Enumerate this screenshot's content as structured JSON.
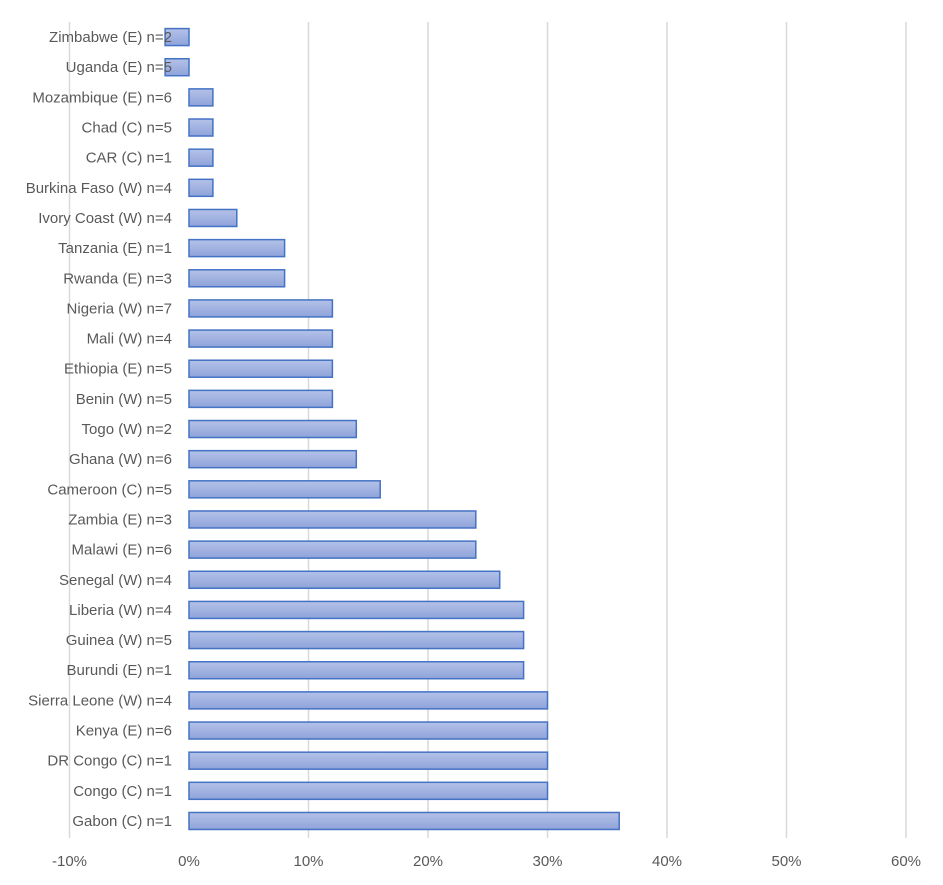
{
  "chart_data": {
    "type": "bar",
    "orientation": "horizontal",
    "title": "",
    "xlabel": "",
    "ylabel": "",
    "xlim": [
      -0.1,
      0.6
    ],
    "x_ticks": [
      {
        "value": -0.1,
        "label": "-10%"
      },
      {
        "value": 0.0,
        "label": "0%"
      },
      {
        "value": 0.1,
        "label": "10%"
      },
      {
        "value": 0.2,
        "label": "20%"
      },
      {
        "value": 0.3,
        "label": "30%"
      },
      {
        "value": 0.4,
        "label": "40%"
      },
      {
        "value": 0.5,
        "label": "50%"
      },
      {
        "value": 0.6,
        "label": "60%"
      }
    ],
    "grid": true,
    "legend": "none",
    "categories": [
      "Zimbabwe (E) n=2",
      "Uganda (E) n=5",
      "Mozambique (E) n=6",
      "Chad (C) n=5",
      "CAR (C) n=1",
      "Burkina Faso (W) n=4",
      "Ivory Coast (W) n=4",
      "Tanzania (E) n=1",
      "Rwanda (E) n=3",
      "Nigeria (W) n=7",
      "Mali (W) n=4",
      "Ethiopia (E) n=5",
      "Benin (W) n=5",
      "Togo (W) n=2",
      "Ghana (W) n=6",
      "Cameroon (C) n=5",
      "Zambia (E) n=3",
      "Malawi (E) n=6",
      "Senegal (W) n=4",
      "Liberia (W) n=4",
      "Guinea (W) n=5",
      "Burundi (E) n=1",
      "Sierra Leone (W) n=4",
      "Kenya (E) n=6",
      "DR Congo (C) n=1",
      "Congo (C) n=1",
      "Gabon (C) n=1"
    ],
    "values": [
      -0.02,
      -0.02,
      0.02,
      0.02,
      0.02,
      0.02,
      0.04,
      0.08,
      0.08,
      0.12,
      0.12,
      0.12,
      0.12,
      0.14,
      0.14,
      0.16,
      0.24,
      0.24,
      0.26,
      0.28,
      0.28,
      0.28,
      0.3,
      0.3,
      0.3,
      0.3,
      0.36
    ],
    "colors": {
      "bar_fill_top": "#b4c2e8",
      "bar_fill_bottom": "#8fa3da",
      "bar_stroke": "#4472c4",
      "grid": "#d9d9d9",
      "text": "#595959"
    }
  }
}
